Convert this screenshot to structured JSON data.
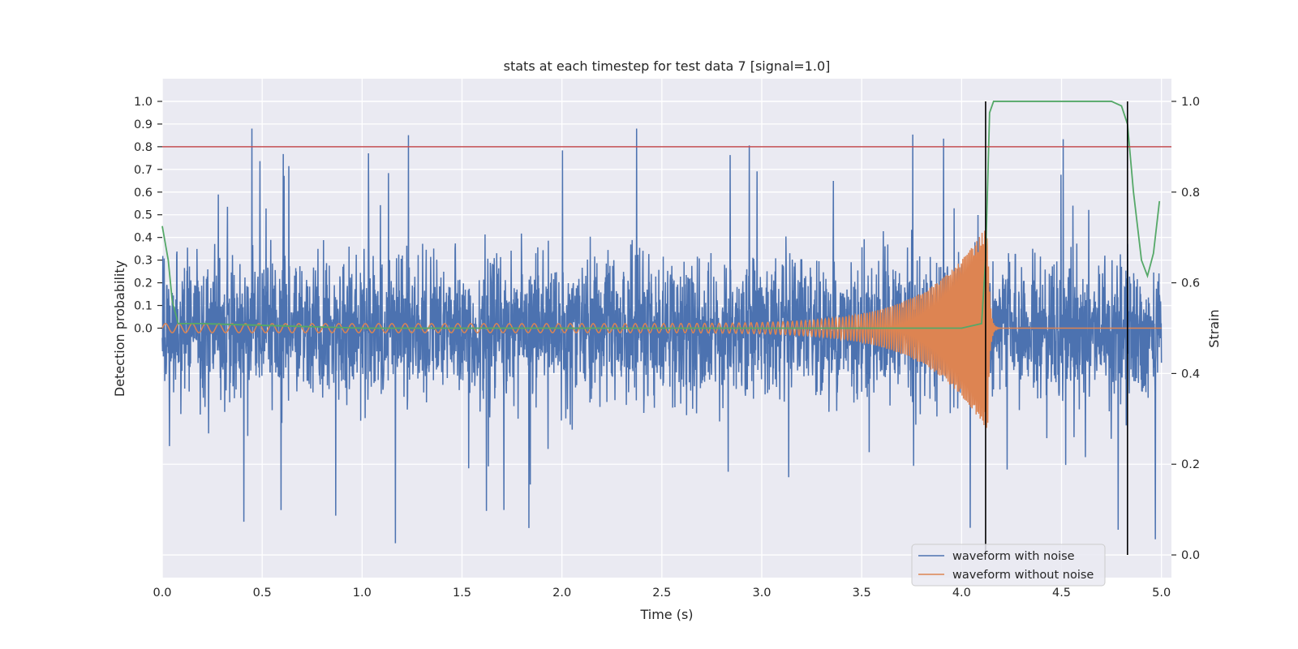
{
  "chart_data": {
    "type": "line",
    "title": "stats at each timestep for test data 7 [signal=1.0]",
    "xlabel": "Time (s)",
    "ylabel_left": "Detection probability",
    "ylabel_right": "Strain",
    "xlim": [
      0.0,
      5.05
    ],
    "x_ticks": [
      "0.0",
      "0.5",
      "1.0",
      "1.5",
      "2.0",
      "2.5",
      "3.0",
      "3.5",
      "4.0",
      "4.5",
      "5.0"
    ],
    "x_tick_values": [
      0.0,
      0.5,
      1.0,
      1.5,
      2.0,
      2.5,
      3.0,
      3.5,
      4.0,
      4.5,
      5.0
    ],
    "left_ticks": [
      "0.0",
      "0.1",
      "0.2",
      "0.3",
      "0.4",
      "0.5",
      "0.6",
      "0.7",
      "0.8",
      "0.9",
      "1.0"
    ],
    "left_tick_values": [
      0.0,
      0.1,
      0.2,
      0.3,
      0.4,
      0.5,
      0.6,
      0.7,
      0.8,
      0.9,
      1.0
    ],
    "left_ylim": [
      -1.1,
      1.1
    ],
    "right_ticks": [
      "0.0",
      "0.2",
      "0.4",
      "0.6",
      "0.8",
      "1.0"
    ],
    "right_tick_values": [
      0.0,
      0.2,
      0.4,
      0.6,
      0.8,
      1.0
    ],
    "right_ylim": [
      -0.05,
      1.05
    ],
    "grid": true,
    "legend_position": "lower-right",
    "legend": [
      "waveform with noise",
      "waveform without noise"
    ],
    "threshold": {
      "value": 0.8,
      "color": "#c44e52"
    },
    "vertical_markers": [
      4.12,
      4.83
    ],
    "series": [
      {
        "name": "waveform with noise",
        "axis": "right",
        "color": "#4c72b0",
        "kind": "noise",
        "x_range": [
          0.0,
          5.0
        ],
        "mean": 0.5,
        "typical_range": [
          0.3,
          0.7
        ],
        "extreme_range": [
          0.0,
          0.94
        ]
      },
      {
        "name": "waveform without noise",
        "axis": "right",
        "color": "#dd8452",
        "kind": "chirp",
        "x_range": [
          0.0,
          5.0
        ],
        "center": 0.5,
        "start_amplitude": 0.01,
        "peak_amplitude": 0.23,
        "peak_time": 4.13,
        "start_frequency_hz": 15,
        "end_frequency_hz": 160,
        "after_peak_value": 0.5
      },
      {
        "name": "",
        "axis": "left",
        "color": "#55a868",
        "kind": "probability",
        "x": [
          0.0,
          0.03,
          0.05,
          0.08,
          0.2,
          1.0,
          2.0,
          3.0,
          4.0,
          4.1,
          4.12,
          4.14,
          4.16,
          4.5,
          4.75,
          4.8,
          4.83,
          4.86,
          4.9,
          4.93,
          4.96,
          4.99
        ],
        "y": [
          0.45,
          0.3,
          0.12,
          0.02,
          0.02,
          0.0,
          0.0,
          0.0,
          0.0,
          0.02,
          0.3,
          0.95,
          1.0,
          1.0,
          1.0,
          0.98,
          0.9,
          0.6,
          0.3,
          0.23,
          0.33,
          0.56
        ]
      }
    ]
  }
}
